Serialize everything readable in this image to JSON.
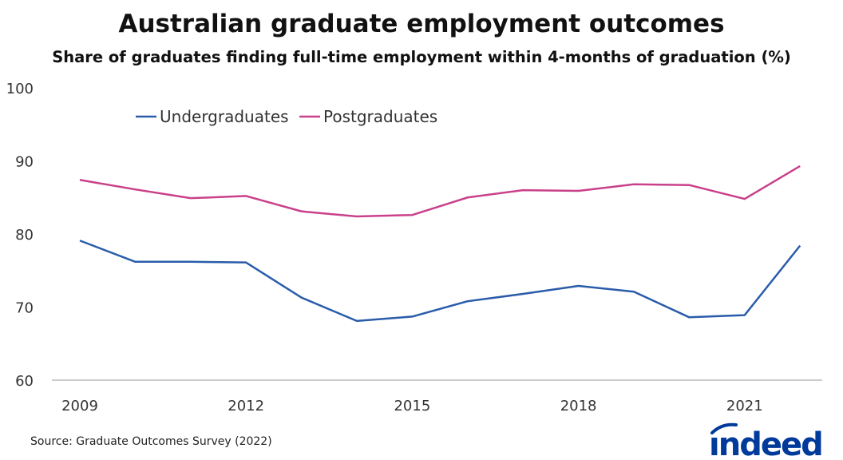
{
  "chart_data": {
    "type": "line",
    "title": "Australian graduate employment outcomes",
    "subtitle": "Share of graduates finding full-time employment within 4-months of graduation (%)",
    "x": [
      2009,
      2010,
      2011,
      2012,
      2013,
      2014,
      2015,
      2016,
      2017,
      2018,
      2019,
      2020,
      2021,
      2022
    ],
    "xticks": [
      "2009",
      "2012",
      "2015",
      "2018",
      "2021"
    ],
    "yticks": [
      "60",
      "70",
      "80",
      "90",
      "100"
    ],
    "ylim": [
      60,
      100
    ],
    "grid": false,
    "legend_position": "top-left",
    "series": [
      {
        "name": "Undergraduates",
        "color": "#2a5caa",
        "values": [
          79.1,
          76.2,
          76.2,
          76.1,
          71.3,
          68.1,
          68.7,
          70.8,
          71.8,
          72.9,
          72.1,
          68.6,
          68.9,
          78.4
        ]
      },
      {
        "name": "Postgraduates",
        "color": "#c9408b",
        "values": [
          87.4,
          86.1,
          84.9,
          85.2,
          83.1,
          82.4,
          82.6,
          85.0,
          86.0,
          85.9,
          86.8,
          86.7,
          84.8,
          89.3
        ]
      }
    ]
  },
  "source": "Source: Graduate Outcomes Survey (2022)",
  "logo": {
    "text": "indeed",
    "color": "#003a9b"
  }
}
